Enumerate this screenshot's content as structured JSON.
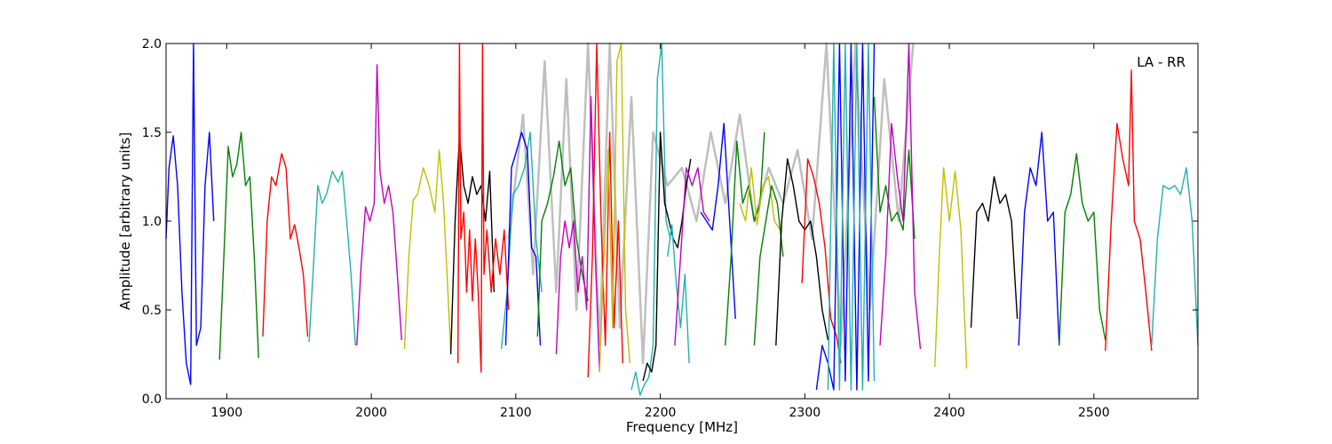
{
  "chart_data": {
    "type": "line",
    "title": "",
    "xlabel": "Frequency [MHz]",
    "ylabel": "Amplitude [arbitrary units]",
    "xlim": [
      1858,
      2572
    ],
    "ylim": [
      0.0,
      2.0
    ],
    "xticks": [
      1900,
      2000,
      2100,
      2200,
      2300,
      2400,
      2500
    ],
    "yticks": [
      0.0,
      0.5,
      1.0,
      1.5,
      2.0
    ],
    "xtick_labels": [
      "1900",
      "2000",
      "2100",
      "2200",
      "2300",
      "2400",
      "2500"
    ],
    "ytick_labels": [
      "0.0",
      "0.5",
      "1.0",
      "1.5",
      "2.0"
    ],
    "annotation": "LA - RR",
    "grid": false,
    "series": [
      {
        "color": "#bfbfbf",
        "x": [
          2095,
          2105,
          2112,
          2120,
          2128,
          2135,
          2142,
          2150,
          2158,
          2165,
          2172,
          2180,
          2188,
          2195,
          2205,
          2215,
          2225,
          2235,
          2245,
          2255,
          2265,
          2275,
          2285,
          2295,
          2305,
          2315,
          2325,
          2335,
          2345,
          2355,
          2365,
          2375
        ],
        "y": [
          0.9,
          1.6,
          0.7,
          1.9,
          0.6,
          1.8,
          0.5,
          2.0,
          0.3,
          2.0,
          0.4,
          1.7,
          0.2,
          1.5,
          1.2,
          1.3,
          1.0,
          1.5,
          1.1,
          1.6,
          1.0,
          1.3,
          1.1,
          1.4,
          0.9,
          2.0,
          0.3,
          2.0,
          0.5,
          1.8,
          1.0,
          2.0
        ]
      },
      {
        "color": "#0000ff",
        "x": [
          1858,
          1860,
          1863,
          1866,
          1869,
          1872,
          1875,
          1877,
          1879,
          1882,
          1885,
          1888,
          1891
        ],
        "y": [
          0.9,
          1.3,
          1.48,
          1.2,
          0.6,
          0.2,
          0.08,
          2.0,
          0.3,
          0.4,
          1.2,
          1.5,
          1.0
        ]
      },
      {
        "color": "#008000",
        "x": [
          1895,
          1898,
          1901,
          1904,
          1907,
          1910,
          1913,
          1916,
          1919,
          1922
        ],
        "y": [
          0.22,
          0.8,
          1.42,
          1.25,
          1.32,
          1.5,
          1.2,
          1.25,
          0.8,
          0.23
        ]
      },
      {
        "color": "#ff0000",
        "x": [
          1925,
          1928,
          1931,
          1934,
          1938,
          1941,
          1944,
          1947,
          1950,
          1953,
          1956
        ],
        "y": [
          0.35,
          1.0,
          1.25,
          1.2,
          1.38,
          1.3,
          0.9,
          0.98,
          0.85,
          0.7,
          0.35
        ]
      },
      {
        "color": "#20b2aa",
        "x": [
          1957,
          1960,
          1963,
          1966,
          1969,
          1973,
          1977,
          1980,
          1983,
          1986,
          1989
        ],
        "y": [
          0.32,
          0.75,
          1.2,
          1.1,
          1.15,
          1.28,
          1.22,
          1.28,
          1.0,
          0.7,
          0.3
        ]
      },
      {
        "color": "#bf00bf",
        "x": [
          1990,
          1993,
          1996,
          1999,
          2002,
          2004,
          2006,
          2009,
          2012,
          2015,
          2018,
          2021
        ],
        "y": [
          0.3,
          0.75,
          1.08,
          1.0,
          1.1,
          1.88,
          1.28,
          1.1,
          1.2,
          1.05,
          0.7,
          0.33
        ]
      },
      {
        "color": "#bfbf00",
        "x": [
          2023,
          2026,
          2029,
          2032,
          2036,
          2040,
          2044,
          2047,
          2050,
          2053,
          2055
        ],
        "y": [
          0.28,
          0.8,
          1.12,
          1.15,
          1.3,
          1.2,
          1.05,
          1.4,
          1.1,
          0.6,
          0.27
        ]
      },
      {
        "color": "#000000",
        "x": [
          2055,
          2058,
          2061,
          2064,
          2067,
          2070,
          2073,
          2076,
          2079,
          2082,
          2085
        ],
        "y": [
          0.25,
          1.0,
          1.48,
          1.2,
          1.1,
          1.25,
          1.15,
          1.2,
          1.0,
          1.28,
          0.6
        ]
      },
      {
        "color": "#ff0000",
        "x": [
          2060,
          2061,
          2062,
          2064,
          2066,
          2068,
          2070,
          2072,
          2074,
          2076,
          2077,
          2078,
          2080,
          2083,
          2086,
          2089,
          2092,
          2095
        ],
        "y": [
          0.2,
          2.0,
          0.9,
          1.05,
          0.6,
          0.95,
          0.55,
          0.9,
          0.6,
          0.15,
          2.0,
          0.7,
          0.95,
          0.6,
          0.9,
          0.7,
          0.95,
          0.5
        ]
      },
      {
        "color": "#20b2aa",
        "x": [
          2090,
          2094,
          2098,
          2102,
          2106,
          2110,
          2114,
          2118
        ],
        "y": [
          0.28,
          0.6,
          1.15,
          1.2,
          1.3,
          1.5,
          0.9,
          0.6
        ]
      },
      {
        "color": "#0000ff",
        "x": [
          2093,
          2097,
          2100,
          2104,
          2108,
          2111,
          2114,
          2117
        ],
        "y": [
          0.3,
          1.3,
          1.38,
          1.5,
          1.4,
          0.85,
          0.8,
          0.3
        ]
      },
      {
        "color": "#008000",
        "x": [
          2115,
          2118,
          2122,
          2126,
          2130,
          2134,
          2138,
          2142,
          2146,
          2150
        ],
        "y": [
          0.35,
          1.0,
          1.1,
          1.25,
          1.45,
          1.2,
          1.3,
          0.9,
          0.7,
          0.55
        ]
      },
      {
        "color": "#bf00bf",
        "x": [
          2128,
          2131,
          2134,
          2137,
          2140,
          2143,
          2146,
          2149,
          2152,
          2155,
          2158
        ],
        "y": [
          0.25,
          0.8,
          1.0,
          0.85,
          1.0,
          0.6,
          0.8,
          0.5,
          1.7,
          0.8,
          0.15
        ]
      },
      {
        "color": "#ff0000",
        "x": [
          2150,
          2153,
          2156,
          2159,
          2162,
          2165,
          2168,
          2171,
          2174
        ],
        "y": [
          0.12,
          0.8,
          2.0,
          1.0,
          0.3,
          1.5,
          0.4,
          1.0,
          0.2
        ]
      },
      {
        "color": "#bfbf00",
        "x": [
          2158,
          2161,
          2164,
          2167,
          2170,
          2173,
          2176,
          2179
        ],
        "y": [
          0.15,
          0.8,
          1.4,
          0.4,
          1.9,
          2.0,
          0.5,
          0.2
        ]
      },
      {
        "color": "#20b2aa",
        "x": [
          2180,
          2183,
          2186,
          2189,
          2192,
          2195,
          2198,
          2201,
          2204,
          2207
        ],
        "y": [
          0.05,
          0.15,
          0.02,
          0.08,
          0.12,
          0.3,
          1.8,
          2.0,
          1.0,
          0.9
        ]
      },
      {
        "color": "#000000",
        "x": [
          2188,
          2191,
          2194,
          2197,
          2200,
          2203,
          2206,
          2209,
          2212,
          2215,
          2218,
          2221
        ],
        "y": [
          0.1,
          0.2,
          0.15,
          0.3,
          1.5,
          1.1,
          1.0,
          0.9,
          0.85,
          1.0,
          1.2,
          1.35
        ]
      },
      {
        "color": "#20b2aa",
        "x": [
          2205,
          2208,
          2211,
          2214,
          2217,
          2220
        ],
        "y": [
          0.8,
          0.98,
          0.65,
          0.4,
          0.7,
          0.2
        ]
      },
      {
        "color": "#bf00bf",
        "x": [
          2210,
          2214,
          2218,
          2222,
          2226,
          2230,
          2234
        ],
        "y": [
          0.3,
          0.8,
          1.3,
          1.2,
          1.3,
          1.05,
          1.0
        ]
      },
      {
        "color": "#0000ff",
        "x": [
          2228,
          2232,
          2236,
          2240,
          2244,
          2248,
          2252
        ],
        "y": [
          1.05,
          1.0,
          0.95,
          1.2,
          1.55,
          1.0,
          0.45
        ]
      },
      {
        "color": "#008000",
        "x": [
          2245,
          2249,
          2253,
          2257,
          2261,
          2265,
          2269,
          2272
        ],
        "y": [
          0.3,
          0.8,
          1.45,
          1.1,
          1.2,
          1.0,
          1.1,
          1.5
        ]
      },
      {
        "color": "#bfbf00",
        "x": [
          2255,
          2259,
          2263,
          2267,
          2271,
          2275,
          2279,
          2283
        ],
        "y": [
          1.1,
          1.0,
          1.3,
          0.98,
          1.2,
          1.25,
          1.0,
          0.95
        ]
      },
      {
        "color": "#008000",
        "x": [
          2265,
          2269,
          2273,
          2277,
          2281,
          2285
        ],
        "y": [
          0.3,
          0.8,
          1.0,
          1.2,
          1.1,
          0.8
        ]
      },
      {
        "color": "#000000",
        "x": [
          2280,
          2284,
          2288,
          2292,
          2296,
          2300,
          2304,
          2308,
          2312,
          2316
        ],
        "y": [
          0.3,
          1.0,
          1.35,
          1.2,
          1.0,
          0.95,
          1.0,
          0.8,
          0.5,
          0.33
        ]
      },
      {
        "color": "#ff0000",
        "x": [
          2298,
          2302,
          2306,
          2310,
          2314,
          2318,
          2322,
          2325
        ],
        "y": [
          0.65,
          1.35,
          1.25,
          1.1,
          0.85,
          0.45,
          0.35,
          0.2
        ]
      },
      {
        "color": "#0000ff",
        "x": [
          2308,
          2312,
          2316,
          2320,
          2324,
          2328,
          2332,
          2336,
          2340,
          2344,
          2348
        ],
        "y": [
          0.05,
          0.3,
          0.2,
          0.05,
          2.0,
          0.1,
          2.0,
          0.05,
          2.0,
          0.1,
          2.0
        ]
      },
      {
        "color": "#20b2aa",
        "x": [
          2316,
          2320,
          2324,
          2328,
          2332,
          2336,
          2340,
          2344,
          2348
        ],
        "y": [
          0.05,
          2.0,
          0.05,
          2.0,
          0.05,
          2.0,
          0.05,
          2.0,
          0.1
        ]
      },
      {
        "color": "#008000",
        "x": [
          2348,
          2352,
          2356,
          2360,
          2364,
          2368,
          2372,
          2376
        ],
        "y": [
          1.7,
          1.05,
          1.2,
          1.0,
          1.05,
          0.95,
          1.4,
          0.9
        ]
      },
      {
        "color": "#bf00bf",
        "x": [
          2352,
          2356,
          2360,
          2364,
          2368,
          2372,
          2376,
          2380
        ],
        "y": [
          0.3,
          0.8,
          1.55,
          1.25,
          1.0,
          2.0,
          0.6,
          0.28
        ]
      },
      {
        "color": "#bfbf00",
        "x": [
          2390,
          2393,
          2396,
          2400,
          2404,
          2408,
          2412
        ],
        "y": [
          0.18,
          0.8,
          1.3,
          1.0,
          1.28,
          0.95,
          0.17
        ]
      },
      {
        "color": "#000000",
        "x": [
          2415,
          2419,
          2423,
          2427,
          2431,
          2435,
          2439,
          2443,
          2447
        ],
        "y": [
          0.4,
          1.05,
          1.1,
          1.0,
          1.25,
          1.1,
          1.15,
          1.0,
          0.45
        ]
      },
      {
        "color": "#0000ff",
        "x": [
          2448,
          2452,
          2456,
          2460,
          2464,
          2468,
          2472,
          2476
        ],
        "y": [
          0.3,
          1.05,
          1.3,
          1.2,
          1.5,
          1.0,
          1.05,
          0.3
        ]
      },
      {
        "color": "#008000",
        "x": [
          2476,
          2480,
          2484,
          2488,
          2492,
          2496,
          2500,
          2504,
          2508
        ],
        "y": [
          0.3,
          1.05,
          1.15,
          1.38,
          1.1,
          1.0,
          1.05,
          0.5,
          0.33
        ]
      },
      {
        "color": "#ff0000",
        "x": [
          2508,
          2512,
          2516,
          2520,
          2524,
          2526,
          2528,
          2532,
          2536,
          2540
        ],
        "y": [
          0.27,
          1.0,
          1.55,
          1.35,
          1.2,
          1.85,
          1.0,
          0.9,
          0.6,
          0.27
        ]
      },
      {
        "color": "#20b2aa",
        "x": [
          2540,
          2544,
          2548,
          2552,
          2556,
          2560,
          2564,
          2568,
          2572
        ],
        "y": [
          0.3,
          0.9,
          1.2,
          1.18,
          1.2,
          1.15,
          1.3,
          1.0,
          0.3
        ]
      }
    ]
  }
}
